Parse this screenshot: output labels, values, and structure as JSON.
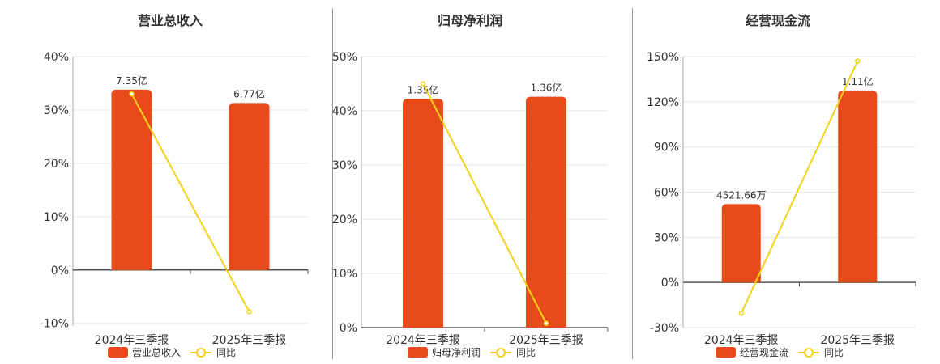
{
  "colors": {
    "bar": "#E84B1A",
    "line": "#F2D21C",
    "axis": "#555555",
    "grid": "#E6E6EE",
    "text": "#333333"
  },
  "chart_data": [
    {
      "type": "bar",
      "title": "营业总收入",
      "categories": [
        "2024年三季报",
        "2025年三季报"
      ],
      "series": [
        {
          "name": "营业总收入",
          "kind": "bar",
          "values": [
            33.8,
            31.3
          ],
          "labels": [
            "7.35亿",
            "6.77亿"
          ]
        },
        {
          "name": "同比",
          "kind": "line",
          "values": [
            33.0,
            -7.8
          ]
        }
      ],
      "y_ticks": [
        "40%",
        "30%",
        "20%",
        "10%",
        "0%",
        "-10%"
      ],
      "ylim": [
        -10.5,
        40
      ],
      "grid": true,
      "legend": "bottom"
    },
    {
      "type": "bar",
      "title": "归母净利润",
      "categories": [
        "2024年三季报",
        "2025年三季报"
      ],
      "series": [
        {
          "name": "归母净利润",
          "kind": "bar",
          "values": [
            42.2,
            42.6
          ],
          "labels": [
            "1.35亿",
            "1.36亿"
          ]
        },
        {
          "name": "同比",
          "kind": "line",
          "values": [
            45.0,
            0.8
          ]
        }
      ],
      "y_ticks": [
        "50%",
        "40%",
        "30%",
        "20%",
        "10%",
        "0%"
      ],
      "ylim": [
        0,
        50
      ],
      "grid": true,
      "legend": "bottom"
    },
    {
      "type": "bar",
      "title": "经营现金流",
      "categories": [
        "2024年三季报",
        "2025年三季报"
      ],
      "series": [
        {
          "name": "经营现金流",
          "kind": "bar",
          "values": [
            52.0,
            127.5
          ],
          "labels": [
            "4521.66万",
            "1.11亿"
          ]
        },
        {
          "name": "同比",
          "kind": "line",
          "values": [
            -20.5,
            147.0
          ]
        }
      ],
      "y_ticks": [
        "150%",
        "120%",
        "90%",
        "60%",
        "30%",
        "0%",
        "-30%"
      ],
      "ylim": [
        -30,
        150
      ],
      "grid": true,
      "legend": "bottom"
    }
  ]
}
